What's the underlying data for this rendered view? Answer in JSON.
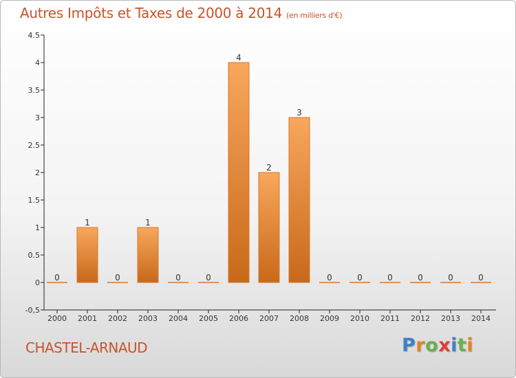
{
  "title": "Autres Impôts et Taxes de 2000 à 2014",
  "unit": "(en milliers d'€)",
  "commune": "CHASTEL-ARNAUD",
  "logo": {
    "letters": [
      "P",
      "r",
      "o",
      "x",
      "i",
      "t",
      "i"
    ],
    "colors": [
      "#3b82c4",
      "#e8811f",
      "#6ab04c",
      "#e03c3c",
      "#3b82c4",
      "#6ab04c",
      "#e8811f"
    ]
  },
  "colors": {
    "bar_top": "#f8a75c",
    "bar_bottom": "#c8691a",
    "bar_edge": "#d9762a",
    "title": "#c8532a"
  },
  "chart_data": {
    "type": "bar",
    "title": "Autres Impôts et Taxes de 2000 à 2014",
    "subtitle": "(en milliers d'€)",
    "xlabel": "",
    "ylabel": "",
    "categories": [
      "2000",
      "2001",
      "2002",
      "2003",
      "2004",
      "2005",
      "2006",
      "2007",
      "2008",
      "2009",
      "2010",
      "2011",
      "2012",
      "2013",
      "2014"
    ],
    "values": [
      0,
      1,
      0,
      1,
      0,
      0,
      4,
      2,
      3,
      0,
      0,
      0,
      0,
      0,
      0
    ],
    "value_labels": [
      "0",
      "1",
      "0",
      "1",
      "0",
      "0",
      "4",
      "2",
      "3",
      "0",
      "0",
      "0",
      "0",
      "0",
      "0"
    ],
    "ylim": [
      -0.5,
      4.5
    ],
    "yticks": [
      -0.5,
      0,
      0.5,
      1,
      1.5,
      2,
      2.5,
      3,
      3.5,
      4,
      4.5
    ],
    "ytick_labels": [
      "-0,5",
      "0",
      "0.5",
      "1",
      "1.5",
      "2",
      "2.5",
      "3",
      "3.5",
      "4",
      "4.5"
    ],
    "grid": false,
    "legend": "none"
  }
}
